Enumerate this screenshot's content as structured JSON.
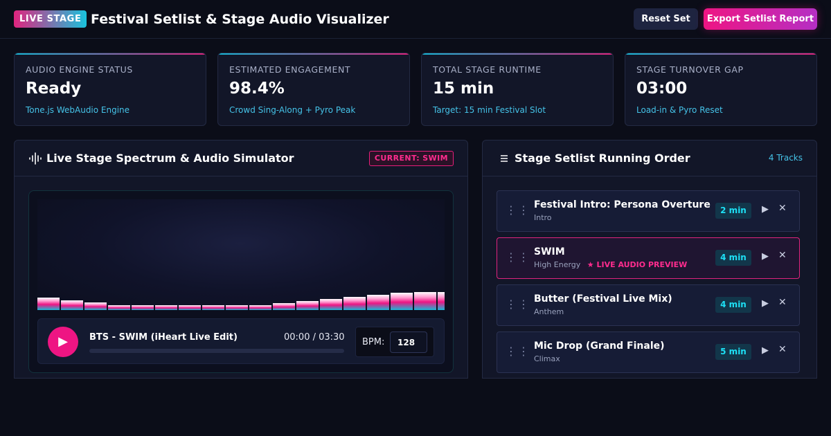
{
  "header": {
    "badge": "LIVE STAGE",
    "title": "Festival Setlist & Stage Audio Visualizer",
    "reset_label": "Reset Set",
    "export_label": "Export Setlist Report"
  },
  "stats": [
    {
      "label": "AUDIO ENGINE STATUS",
      "value": "Ready",
      "sub": "Tone.js WebAudio Engine"
    },
    {
      "label": "ESTIMATED ENGAGEMENT",
      "value": "98.4%",
      "sub": "Crowd Sing-Along + Pyro Peak"
    },
    {
      "label": "TOTAL STAGE RUNTIME",
      "value": "15 min",
      "sub": "Target: 15 min Festival Slot"
    },
    {
      "label": "STAGE TURNOVER GAP",
      "value": "03:00",
      "sub": "Load-in & Pyro Reset"
    }
  ],
  "visualizer": {
    "title": "Live Stage Spectrum & Audio Simulator",
    "current_badge": "CURRENT: SWIM",
    "spectrum_levels": [
      0.11,
      0.09,
      0.07,
      0.045,
      0.045,
      0.045,
      0.045,
      0.045,
      0.045,
      0.045,
      0.06,
      0.08,
      0.1,
      0.12,
      0.14,
      0.155,
      0.165,
      0.165
    ],
    "player": {
      "play_icon": "▶",
      "track": "BTS - SWIM (iHeart Live Edit)",
      "time": "00:00 / 03:30",
      "progress": 0,
      "bpm_label": "BPM:",
      "bpm_value": "128"
    }
  },
  "setlist": {
    "title": "Stage Setlist Running Order",
    "count": "4 Tracks",
    "live_preview_label": "★ LIVE AUDIO PREVIEW",
    "items": [
      {
        "title": "Festival Intro: Persona Overture",
        "tag": "Intro",
        "duration": "2 min"
      },
      {
        "title": "SWIM",
        "tag": "High Energy",
        "duration": "4 min"
      },
      {
        "title": "Butter (Festival Live Mix)",
        "tag": "Anthem",
        "duration": "4 min"
      },
      {
        "title": "Mic Drop (Grand Finale)",
        "tag": "Climax",
        "duration": "5 min"
      }
    ]
  },
  "colors": {
    "accent_pink": "#ee1583",
    "accent_cyan": "#17b8d6",
    "background": "#0b0d18",
    "panel": "#121628"
  }
}
